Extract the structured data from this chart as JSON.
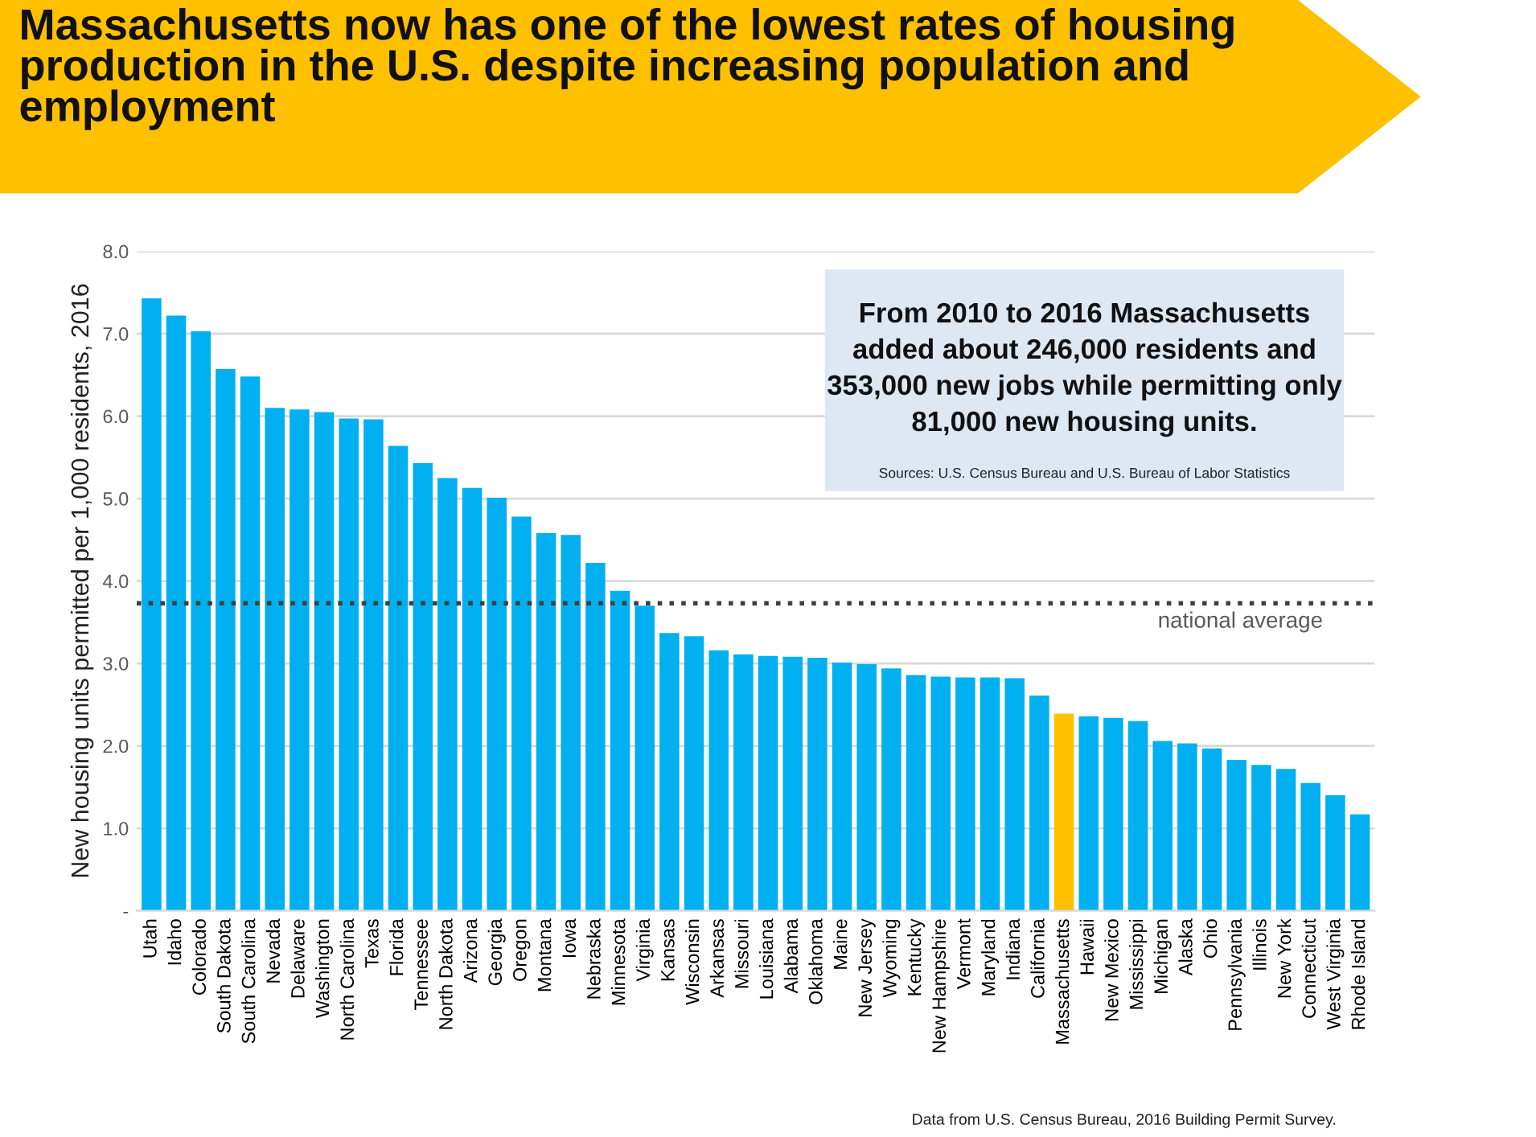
{
  "chart_data": {
    "type": "bar",
    "title": "Massachusetts now has one of the lowest rates of housing production in the U.S. despite increasing population and employment",
    "ylabel": "New housing units permitted per 1,000 residents, 2016",
    "categories": [
      "Utah",
      "Idaho",
      "Colorado",
      "South Dakota",
      "South Carolina",
      "Nevada",
      "Delaware",
      "Washington",
      "North Carolina",
      "Texas",
      "Florida",
      "Tennessee",
      "North Dakota",
      "Arizona",
      "Georgia",
      "Oregon",
      "Montana",
      "Iowa",
      "Nebraska",
      "Minnesota",
      "Virginia",
      "Kansas",
      "Wisconsin",
      "Arkansas",
      "Missouri",
      "Louisiana",
      "Alabama",
      "Oklahoma",
      "Maine",
      "New Jersey",
      "Wyoming",
      "Kentucky",
      "New Hampshire",
      "Vermont",
      "Maryland",
      "Indiana",
      "California",
      "Massachusetts",
      "Hawaii",
      "New Mexico",
      "Mississippi",
      "Michigan",
      "Alaska",
      "Ohio",
      "Pennsylvania",
      "Illinois",
      "New York",
      "Connecticut",
      "West Virginia",
      "Rhode Island"
    ],
    "values": [
      7.43,
      7.22,
      7.03,
      6.57,
      6.48,
      6.1,
      6.08,
      6.05,
      5.97,
      5.96,
      5.64,
      5.43,
      5.25,
      5.13,
      5.01,
      4.78,
      4.58,
      4.56,
      4.22,
      3.88,
      3.7,
      3.37,
      3.33,
      3.16,
      3.11,
      3.09,
      3.08,
      3.07,
      3.01,
      2.99,
      2.94,
      2.86,
      2.84,
      2.83,
      2.83,
      2.82,
      2.61,
      2.39,
      2.36,
      2.34,
      2.3,
      2.06,
      2.03,
      1.97,
      1.83,
      1.77,
      1.72,
      1.55,
      1.4,
      1.17
    ],
    "colors": [
      "#00b0f0",
      "#00b0f0",
      "#00b0f0",
      "#00b0f0",
      "#00b0f0",
      "#00b0f0",
      "#00b0f0",
      "#00b0f0",
      "#00b0f0",
      "#00b0f0",
      "#00b0f0",
      "#00b0f0",
      "#00b0f0",
      "#00b0f0",
      "#00b0f0",
      "#00b0f0",
      "#00b0f0",
      "#00b0f0",
      "#00b0f0",
      "#00b0f0",
      "#00b0f0",
      "#00b0f0",
      "#00b0f0",
      "#00b0f0",
      "#00b0f0",
      "#00b0f0",
      "#00b0f0",
      "#00b0f0",
      "#00b0f0",
      "#00b0f0",
      "#00b0f0",
      "#00b0f0",
      "#00b0f0",
      "#00b0f0",
      "#00b0f0",
      "#00b0f0",
      "#00b0f0",
      "#ffc000",
      "#00b0f0",
      "#00b0f0",
      "#00b0f0",
      "#00b0f0",
      "#00b0f0",
      "#00b0f0",
      "#00b0f0",
      "#00b0f0",
      "#00b0f0",
      "#00b0f0",
      "#00b0f0",
      "#00b0f0"
    ],
    "ylim": [
      0,
      8
    ],
    "yticks": [
      {
        "value": 0,
        "label": "-"
      },
      {
        "value": 1,
        "label": "1.0"
      },
      {
        "value": 2,
        "label": "2.0"
      },
      {
        "value": 3,
        "label": "3.0"
      },
      {
        "value": 4,
        "label": "4.0"
      },
      {
        "value": 5,
        "label": "5.0"
      },
      {
        "value": 6,
        "label": "6.0"
      },
      {
        "value": 7,
        "label": "7.0"
      },
      {
        "value": 8,
        "label": "8.0"
      }
    ],
    "grid": "y",
    "ref_lines": [
      {
        "axis": "y",
        "value": 3.73,
        "label": "national average",
        "color": "#404040",
        "line_style": "dotted"
      }
    ],
    "annotations": [
      "From 2010 to 2016 Massachusetts added about 246,000 residents and 353,000 new jobs while permitting only 81,000 new housing units.",
      "Sources: U.S. Census Bureau and U.S. Bureau of Labor Statistics",
      "Data from U.S. Census Bureau, 2016 Building Permit Survey."
    ]
  }
}
